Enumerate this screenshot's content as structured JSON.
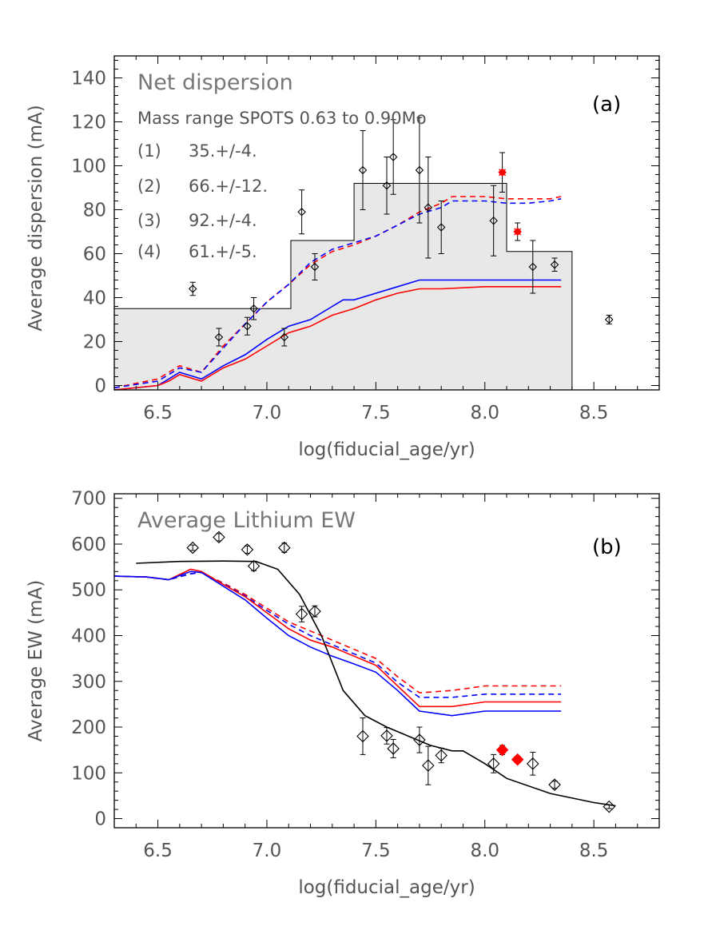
{
  "colors": {
    "model_red": "#ff0000",
    "model_blue": "#0000ff",
    "data_black": "#000000",
    "histogram_fill": "#e8e8e8",
    "highlight_red": "#ff0000"
  },
  "chart_data": [
    {
      "type": "line",
      "panel_label": "(a)",
      "title": "Net dispersion",
      "subtitle": "Mass range SPOTS 0.63 to 0.90Mo",
      "xlabel": "log(fiducial_age/yr)",
      "ylabel": "Average dispersion (mA)",
      "xlim": [
        6.3,
        8.8
      ],
      "ylim": [
        -2,
        150
      ],
      "x_ticks": [
        6.5,
        7.0,
        7.5,
        8.0,
        8.5
      ],
      "x_tick_labels": [
        "6.5",
        "7.0",
        "7.5",
        "8.0",
        "8.5"
      ],
      "y_ticks": [
        0,
        20,
        40,
        60,
        80,
        100,
        120,
        140
      ],
      "y_tick_labels": [
        "0",
        "20",
        "40",
        "60",
        "80",
        "100",
        "120",
        "140"
      ],
      "annotations": [
        {
          "label": "(1)",
          "text": "35.+/-4."
        },
        {
          "label": "(2)",
          "text": "66.+/-12."
        },
        {
          "label": "(3)",
          "text": "92.+/-4."
        },
        {
          "label": "(4)",
          "text": "61.+/-5."
        }
      ],
      "histogram": [
        {
          "x0": 6.3,
          "x1": 7.11,
          "value": 35
        },
        {
          "x0": 7.11,
          "x1": 7.4,
          "value": 66
        },
        {
          "x0": 7.4,
          "x1": 8.1,
          "value": 92
        },
        {
          "x0": 8.1,
          "x1": 8.4,
          "value": 61
        }
      ],
      "series": [
        {
          "name": "model-red-dashed",
          "color": "#ff0000",
          "style": "dashed",
          "x": [
            6.3,
            6.5,
            6.6,
            6.7,
            6.8,
            6.9,
            7.0,
            7.1,
            7.2,
            7.3,
            7.4,
            7.5,
            7.6,
            7.7,
            7.8,
            7.85,
            7.9,
            8.0,
            8.1,
            8.2,
            8.3,
            8.35
          ],
          "y": [
            -1,
            3,
            9,
            6,
            18,
            28,
            38,
            46,
            55,
            61,
            64,
            68,
            73,
            79,
            83,
            86,
            86,
            86,
            85,
            85,
            85,
            86
          ]
        },
        {
          "name": "model-blue-dashed",
          "color": "#0000ff",
          "style": "dashed",
          "x": [
            6.3,
            6.5,
            6.6,
            6.7,
            6.8,
            6.9,
            7.0,
            7.1,
            7.2,
            7.3,
            7.4,
            7.5,
            7.6,
            7.7,
            7.8,
            7.85,
            7.9,
            8.0,
            8.1,
            8.2,
            8.3,
            8.35
          ],
          "y": [
            -1,
            2,
            8,
            6,
            17,
            28,
            38,
            46,
            56,
            62,
            65,
            68,
            73,
            78,
            81,
            84,
            84,
            84,
            83,
            83,
            84,
            85
          ]
        },
        {
          "name": "model-blue-solid",
          "color": "#0000ff",
          "style": "solid",
          "x": [
            6.3,
            6.5,
            6.55,
            6.6,
            6.7,
            6.8,
            6.9,
            7.0,
            7.1,
            7.2,
            7.3,
            7.35,
            7.4,
            7.5,
            7.6,
            7.7,
            7.8,
            8.0,
            8.2,
            8.35
          ],
          "y": [
            -2,
            0,
            3,
            6,
            3,
            9,
            14,
            21,
            27,
            30,
            36,
            39,
            39,
            42,
            45,
            48,
            48,
            48,
            48,
            48
          ]
        },
        {
          "name": "model-red-solid",
          "color": "#ff0000",
          "style": "solid",
          "x": [
            6.3,
            6.5,
            6.55,
            6.6,
            6.7,
            6.8,
            6.9,
            7.0,
            7.1,
            7.2,
            7.3,
            7.4,
            7.5,
            7.6,
            7.7,
            7.8,
            8.0,
            8.2,
            8.35
          ],
          "y": [
            -2,
            0,
            2,
            5,
            2,
            8,
            12,
            18,
            24,
            27,
            32,
            35,
            39,
            42,
            44,
            44,
            45,
            45,
            45
          ]
        }
      ],
      "points": [
        {
          "x": 6.66,
          "y": 44,
          "err": 3,
          "highlight": false
        },
        {
          "x": 6.78,
          "y": 22,
          "err": 4,
          "highlight": false
        },
        {
          "x": 6.91,
          "y": 27,
          "err": 4,
          "highlight": false
        },
        {
          "x": 6.94,
          "y": 35,
          "err": 5,
          "highlight": false
        },
        {
          "x": 7.08,
          "y": 22,
          "err": 4,
          "highlight": false
        },
        {
          "x": 7.16,
          "y": 79,
          "err": 10,
          "highlight": false
        },
        {
          "x": 7.22,
          "y": 54,
          "err": 6,
          "highlight": false
        },
        {
          "x": 7.44,
          "y": 98,
          "err": 18,
          "highlight": false
        },
        {
          "x": 7.55,
          "y": 91,
          "err": 13,
          "highlight": false
        },
        {
          "x": 7.58,
          "y": 104,
          "err": 17,
          "highlight": false
        },
        {
          "x": 7.7,
          "y": 98,
          "err": 24,
          "highlight": false
        },
        {
          "x": 7.74,
          "y": 81,
          "err": 23,
          "highlight": false
        },
        {
          "x": 7.8,
          "y": 72,
          "err": 12,
          "highlight": false
        },
        {
          "x": 8.04,
          "y": 75,
          "err": 16,
          "highlight": false
        },
        {
          "x": 8.08,
          "y": 97,
          "err": 9,
          "highlight": true
        },
        {
          "x": 8.15,
          "y": 70,
          "err": 4,
          "highlight": true
        },
        {
          "x": 8.22,
          "y": 54,
          "err": 12,
          "highlight": false
        },
        {
          "x": 8.32,
          "y": 55,
          "err": 3,
          "highlight": false
        },
        {
          "x": 8.57,
          "y": 30,
          "err": 2,
          "highlight": false
        }
      ]
    },
    {
      "type": "line",
      "panel_label": "(b)",
      "title": "Average Lithium EW",
      "xlabel": "log(fiducial_age/yr)",
      "ylabel": "Average EW (mA)",
      "xlim": [
        6.3,
        8.8
      ],
      "ylim": [
        -20,
        710
      ],
      "x_ticks": [
        6.5,
        7.0,
        7.5,
        8.0,
        8.5
      ],
      "x_tick_labels": [
        "6.5",
        "7.0",
        "7.5",
        "8.0",
        "8.5"
      ],
      "y_ticks": [
        0,
        100,
        200,
        300,
        400,
        500,
        600,
        700
      ],
      "y_tick_labels": [
        "0",
        "100",
        "200",
        "300",
        "400",
        "500",
        "600",
        "700"
      ],
      "series": [
        {
          "name": "model-red-dashed",
          "color": "#ff0000",
          "style": "dashed",
          "x": [
            6.3,
            6.45,
            6.55,
            6.65,
            6.7,
            6.8,
            6.9,
            7.0,
            7.1,
            7.2,
            7.3,
            7.4,
            7.5,
            7.6,
            7.7,
            7.85,
            8.0,
            8.2,
            8.35
          ],
          "y": [
            530,
            528,
            522,
            535,
            538,
            515,
            490,
            460,
            430,
            410,
            390,
            370,
            350,
            310,
            275,
            280,
            290,
            290,
            290
          ]
        },
        {
          "name": "model-blue-dashed",
          "color": "#0000ff",
          "style": "dashed",
          "x": [
            6.3,
            6.45,
            6.55,
            6.65,
            6.7,
            6.8,
            6.9,
            7.0,
            7.1,
            7.2,
            7.3,
            7.4,
            7.5,
            7.6,
            7.7,
            7.85,
            8.0,
            8.2,
            8.35
          ],
          "y": [
            530,
            528,
            522,
            535,
            538,
            513,
            487,
            455,
            425,
            400,
            380,
            360,
            340,
            298,
            265,
            265,
            272,
            272,
            272
          ]
        },
        {
          "name": "model-red-solid",
          "color": "#ff0000",
          "style": "solid",
          "x": [
            6.3,
            6.45,
            6.55,
            6.65,
            6.7,
            6.8,
            6.9,
            7.0,
            7.1,
            7.2,
            7.3,
            7.4,
            7.5,
            7.6,
            7.7,
            7.85,
            8.0,
            8.2,
            8.35
          ],
          "y": [
            530,
            528,
            522,
            545,
            540,
            512,
            485,
            450,
            415,
            390,
            375,
            355,
            335,
            290,
            245,
            245,
            255,
            255,
            255
          ]
        },
        {
          "name": "model-blue-solid",
          "color": "#0000ff",
          "style": "solid",
          "x": [
            6.3,
            6.45,
            6.55,
            6.65,
            6.7,
            6.8,
            6.9,
            7.0,
            7.1,
            7.2,
            7.3,
            7.4,
            7.5,
            7.6,
            7.7,
            7.85,
            8.0,
            8.2,
            8.35
          ],
          "y": [
            530,
            528,
            522,
            540,
            538,
            508,
            478,
            438,
            400,
            375,
            355,
            338,
            320,
            280,
            235,
            225,
            235,
            235,
            235
          ]
        },
        {
          "name": "empirical-black",
          "color": "#000000",
          "style": "solid",
          "x": [
            6.4,
            6.6,
            6.8,
            6.95,
            7.05,
            7.15,
            7.25,
            7.35,
            7.45,
            7.55,
            7.65,
            7.75,
            7.85,
            7.9,
            8.0,
            8.1,
            8.3,
            8.5,
            8.6
          ],
          "y": [
            558,
            562,
            563,
            562,
            545,
            490,
            400,
            280,
            225,
            200,
            180,
            160,
            148,
            148,
            120,
            88,
            55,
            35,
            28
          ]
        }
      ],
      "points": [
        {
          "x": 6.66,
          "y": 592,
          "err": 6,
          "highlight": false
        },
        {
          "x": 6.78,
          "y": 615,
          "err": 8,
          "highlight": false
        },
        {
          "x": 6.91,
          "y": 588,
          "err": 8,
          "highlight": false
        },
        {
          "x": 6.94,
          "y": 552,
          "err": 10,
          "highlight": false
        },
        {
          "x": 7.08,
          "y": 592,
          "err": 10,
          "highlight": false
        },
        {
          "x": 7.16,
          "y": 447,
          "err": 17,
          "highlight": false
        },
        {
          "x": 7.22,
          "y": 453,
          "err": 12,
          "highlight": false
        },
        {
          "x": 7.44,
          "y": 180,
          "err": 40,
          "highlight": false
        },
        {
          "x": 7.55,
          "y": 181,
          "err": 18,
          "highlight": false
        },
        {
          "x": 7.58,
          "y": 153,
          "err": 20,
          "highlight": false
        },
        {
          "x": 7.7,
          "y": 172,
          "err": 28,
          "highlight": false
        },
        {
          "x": 7.74,
          "y": 116,
          "err": 42,
          "highlight": false
        },
        {
          "x": 7.8,
          "y": 138,
          "err": 16,
          "highlight": false
        },
        {
          "x": 8.04,
          "y": 120,
          "err": 20,
          "highlight": false
        },
        {
          "x": 8.08,
          "y": 150,
          "err": 10,
          "highlight": true
        },
        {
          "x": 8.15,
          "y": 129,
          "err": 6,
          "highlight": true
        },
        {
          "x": 8.22,
          "y": 120,
          "err": 25,
          "highlight": false
        },
        {
          "x": 8.32,
          "y": 74,
          "err": 8,
          "highlight": false
        },
        {
          "x": 8.57,
          "y": 26,
          "err": 4,
          "highlight": false
        }
      ]
    }
  ]
}
